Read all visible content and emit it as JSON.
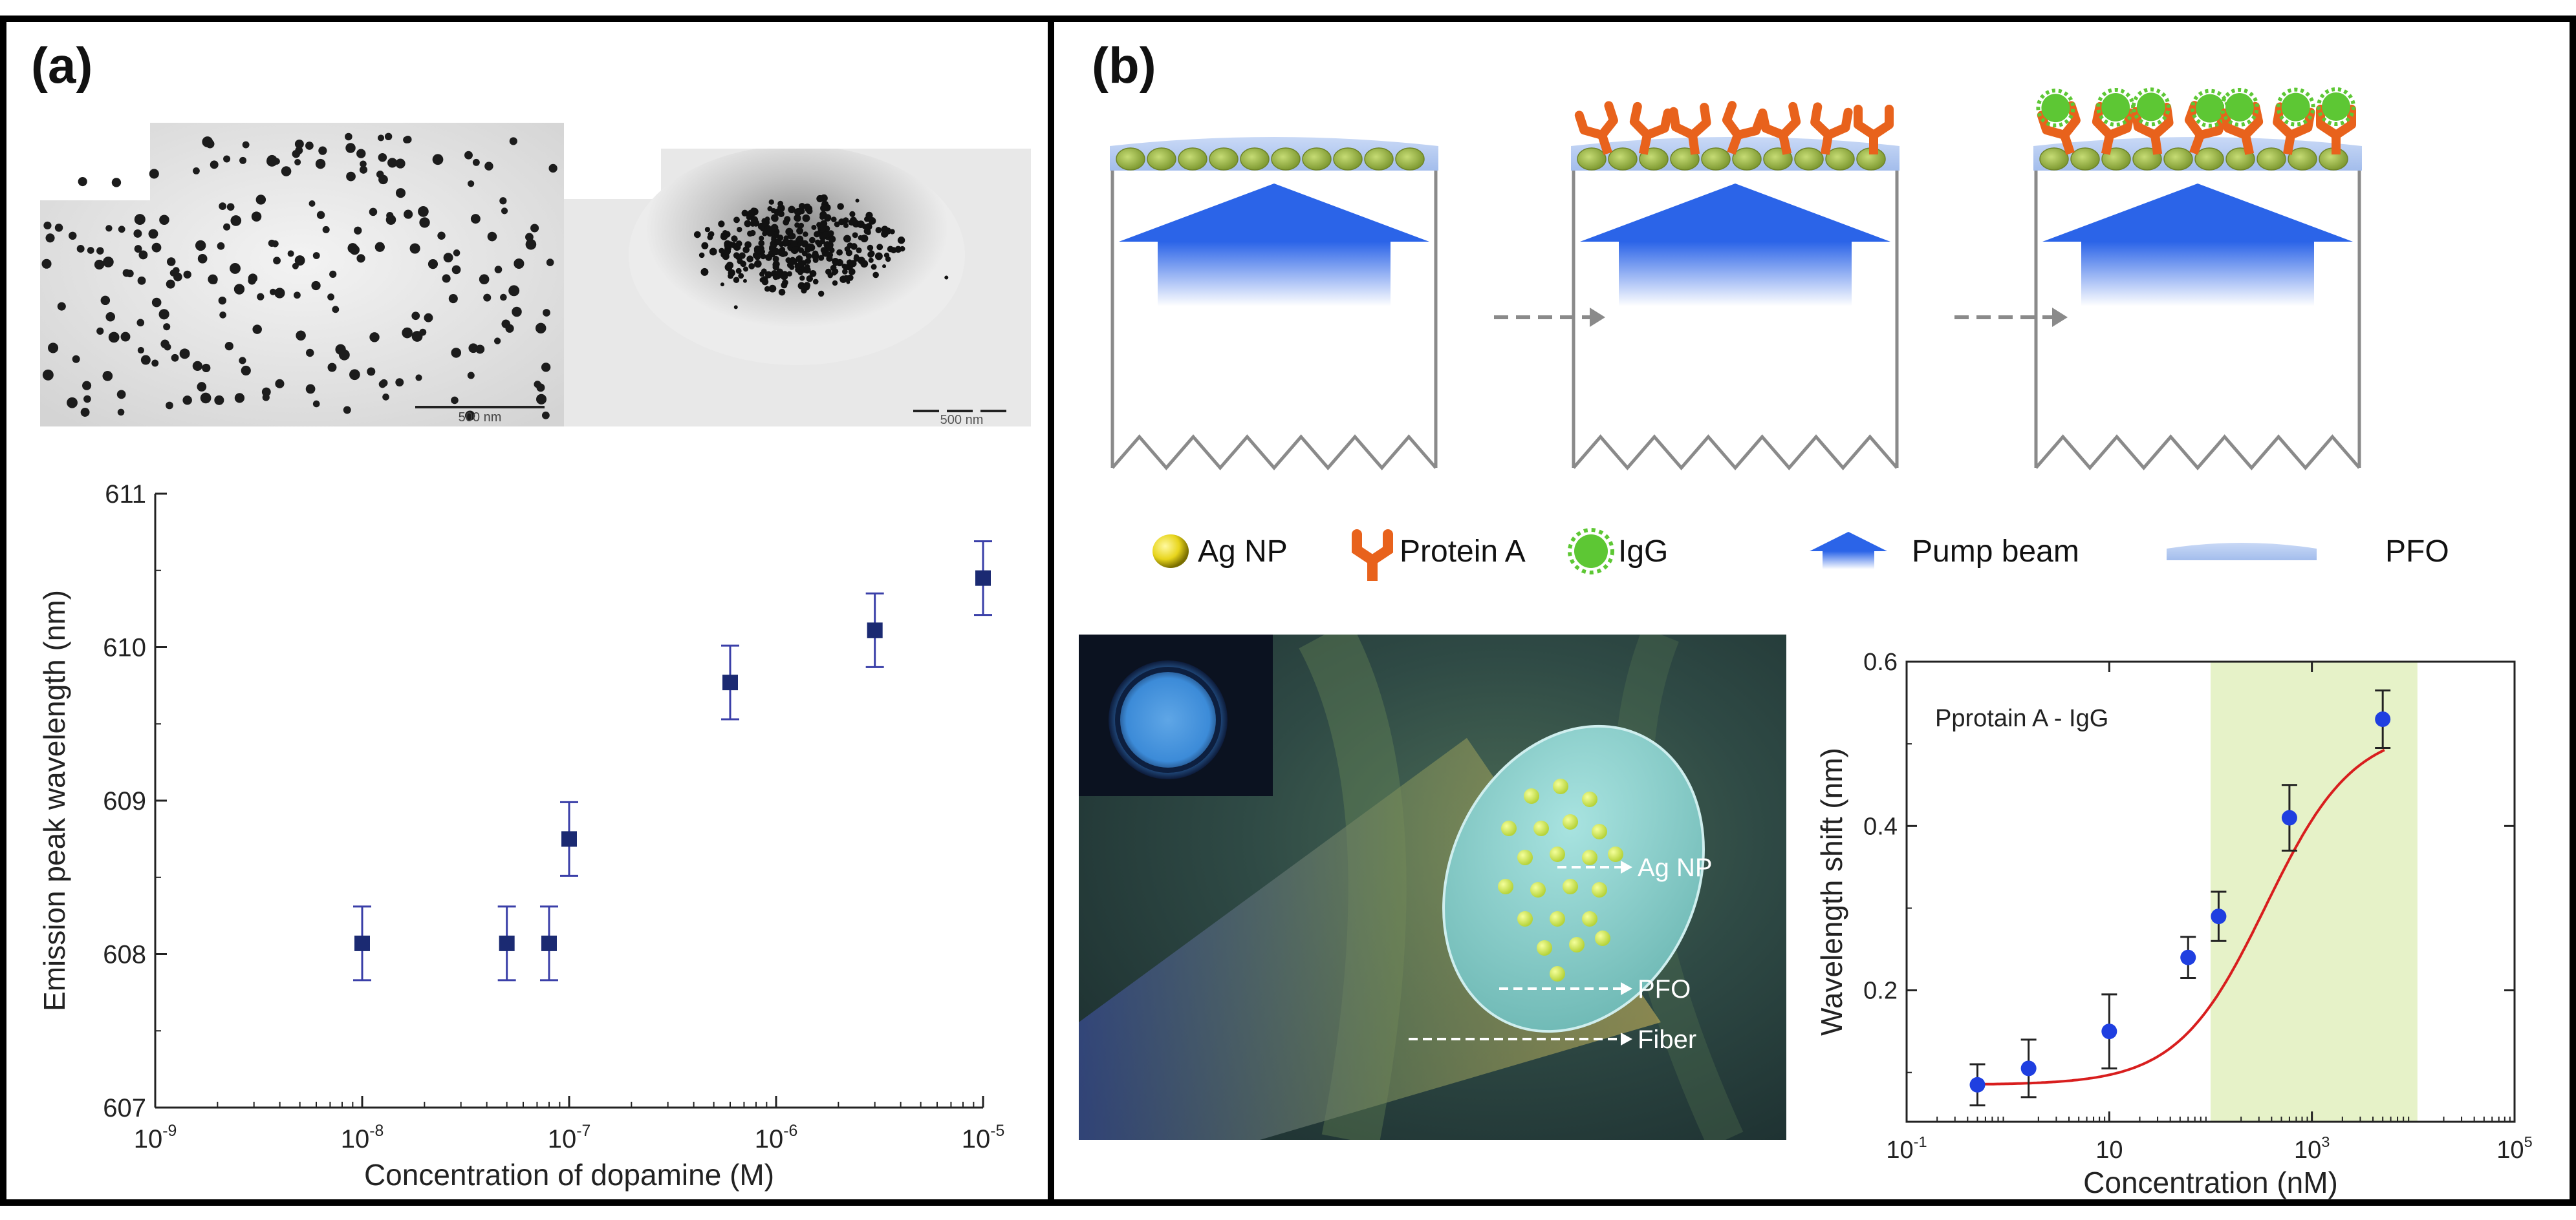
{
  "panels": {
    "a": {
      "label": "(a)"
    },
    "b": {
      "label": "(b)"
    }
  },
  "tem": {
    "left_scale": "500 nm",
    "right_scale": "500 nm"
  },
  "legend": {
    "items": [
      {
        "icon": "ag-np-icon",
        "label": "Ag NP"
      },
      {
        "icon": "protein-a-icon",
        "label": "Protein  A"
      },
      {
        "icon": "igg-icon",
        "label": "IgG"
      },
      {
        "icon": "pump-beam-icon",
        "label": "Pump beam"
      },
      {
        "icon": "pfo-icon",
        "label": "PFO"
      }
    ]
  },
  "fiber_labels": {
    "ag": "Ag NP",
    "pfo": "PFO",
    "fiber": "Fiber"
  },
  "colors": {
    "marker_a": "#1b2a72",
    "errorbar_a": "#3a3fa8",
    "marker_b": "#1f3fe0",
    "fit_b": "#d81e1e",
    "band_b": "#e6f2c8",
    "antibody": "#e8621c",
    "np_green": "#9cb548",
    "pfo_blue": "#b9cdf0",
    "beam_blue": "#2b64e8",
    "igg_green": "#5dc734"
  },
  "chart_data": [
    {
      "type": "scatter",
      "title": "",
      "xlabel": "Concentration of dopamine (M)",
      "ylabel": "Emission peak wavelength (nm)",
      "xscale": "log",
      "xlim": [
        1e-09,
        1e-05
      ],
      "ylim": [
        607,
        611
      ],
      "xticks": [
        {
          "v": 1e-09,
          "base": "10",
          "exp": "-9"
        },
        {
          "v": 1e-08,
          "base": "10",
          "exp": "-8"
        },
        {
          "v": 1e-07,
          "base": "10",
          "exp": "-7"
        },
        {
          "v": 1e-06,
          "base": "10",
          "exp": "-6"
        },
        {
          "v": 1e-05,
          "base": "10",
          "exp": "-5"
        }
      ],
      "yticks": [
        607,
        608,
        609,
        610,
        611
      ],
      "points": [
        {
          "x": 1e-08,
          "y": 608.07,
          "err": 0.24
        },
        {
          "x": 5e-08,
          "y": 608.07,
          "err": 0.24
        },
        {
          "x": 8e-08,
          "y": 608.07,
          "err": 0.24
        },
        {
          "x": 1e-07,
          "y": 608.75,
          "err": 0.24
        },
        {
          "x": 6e-07,
          "y": 609.77,
          "err": 0.24
        },
        {
          "x": 3e-06,
          "y": 610.11,
          "err": 0.24
        },
        {
          "x": 1e-05,
          "y": 610.45,
          "err": 0.24
        }
      ]
    },
    {
      "type": "scatter",
      "title": "Pprotain A - IgG",
      "xlabel": "Concentration (nM)",
      "ylabel": "Wavelength shift (nm)",
      "xscale": "log",
      "xlim": [
        0.1,
        100000
      ],
      "ylim": [
        0.04,
        0.6
      ],
      "xticks": [
        {
          "v": 0.1,
          "base": "10",
          "exp": "-1"
        },
        {
          "v": 1000,
          "base": "10",
          "exp": "3"
        },
        {
          "v": 100000,
          "base": "10",
          "exp": "5"
        }
      ],
      "xticks_unlabeled": [
        10
      ],
      "x_label_10": "10",
      "yticks": [
        0.2,
        0.4,
        0.6
      ],
      "ytick_labels": [
        "0.2",
        "0.4",
        "0.6"
      ],
      "highlight_range": [
        100,
        11000
      ],
      "points": [
        {
          "x": 0.5,
          "y": 0.085,
          "err": 0.025
        },
        {
          "x": 1.6,
          "y": 0.105,
          "err": 0.035
        },
        {
          "x": 10,
          "y": 0.15,
          "err": 0.045
        },
        {
          "x": 60,
          "y": 0.24,
          "err": 0.025
        },
        {
          "x": 120,
          "y": 0.29,
          "err": 0.03
        },
        {
          "x": 600,
          "y": 0.41,
          "err": 0.04
        },
        {
          "x": 5000,
          "y": 0.53,
          "err": 0.035
        }
      ],
      "fit": {
        "bottom": 0.085,
        "top": 0.52,
        "x50": 350,
        "slope": 1.0
      }
    }
  ]
}
